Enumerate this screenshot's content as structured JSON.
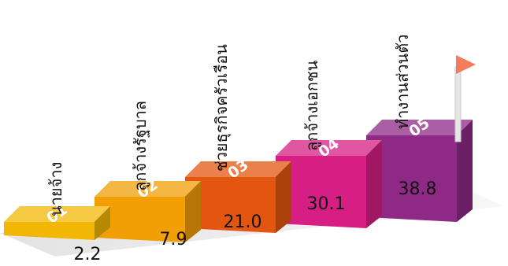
{
  "chart_data": {
    "type": "bar",
    "style": "3d-staircase",
    "categories": [
      "นายจ้าง",
      "ลูกจ้างรัฐบาล",
      "ช่วยธุรกิจครัวเรือน",
      "ลูกจ้างเอกชน",
      "ทำงานส่วนตัว"
    ],
    "step_numbers": [
      "01",
      "02",
      "03",
      "04",
      "05"
    ],
    "values": [
      2.2,
      7.9,
      21.0,
      30.1,
      38.8
    ],
    "value_labels": [
      "2.2",
      "7.9",
      "21.0",
      "30.1",
      "38.8"
    ],
    "colors": [
      "#F2B705",
      "#F29F05",
      "#E3560F",
      "#D61E84",
      "#8E2A86"
    ],
    "flag_color": "#F47C5C",
    "legend": false,
    "grid": false
  }
}
